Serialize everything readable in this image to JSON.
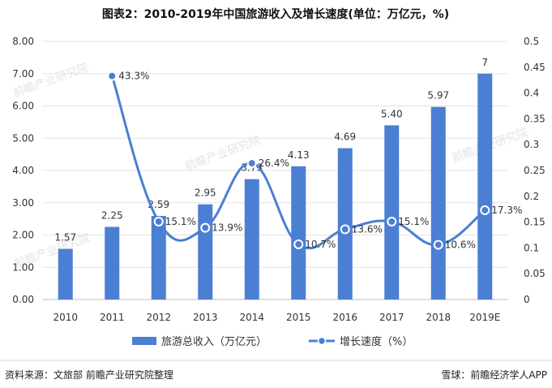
{
  "chart_data": {
    "type": "bar",
    "title": "图表2：2010-2019年中国旅游收入及增长速度(单位：万亿元，%)",
    "categories": [
      "2010",
      "2011",
      "2012",
      "2013",
      "2014",
      "2015",
      "2016",
      "2017",
      "2018",
      "2019E"
    ],
    "series": [
      {
        "name": "旅游总收入（万亿元）",
        "type": "bar",
        "axis": "left",
        "values": [
          1.57,
          2.25,
          2.59,
          2.95,
          3.73,
          4.13,
          4.69,
          5.4,
          5.97,
          7
        ],
        "labels": [
          "1.57",
          "2.25",
          "2.59",
          "2.95",
          "3.73",
          "4.13",
          "4.69",
          "5.40",
          "5.97",
          "7"
        ]
      },
      {
        "name": "增长速度（%）",
        "type": "line",
        "axis": "right",
        "values": [
          null,
          0.433,
          0.151,
          0.139,
          0.264,
          0.107,
          0.136,
          0.151,
          0.106,
          0.173
        ],
        "labels": [
          "",
          "43.3%",
          "15.1%",
          "13.9%",
          "26.4%",
          "10.7%",
          "13.6%",
          "15.1%",
          "10.6%",
          "17.3%"
        ]
      }
    ],
    "left_axis": {
      "ylim": [
        0,
        8
      ],
      "ticks": [
        "0.00",
        "1.00",
        "2.00",
        "3.00",
        "4.00",
        "5.00",
        "6.00",
        "7.00",
        "8.00"
      ]
    },
    "right_axis": {
      "ylim": [
        0,
        0.5
      ],
      "ticks": [
        "0",
        "0.05",
        "0.1",
        "0.15",
        "0.2",
        "0.25",
        "0.3",
        "0.35",
        "0.4",
        "0.45",
        "0.5"
      ]
    },
    "legend_position": "bottom",
    "colors": {
      "bar": "#4a7fd4",
      "line": "#4a7fd4",
      "marker_fill": "#4a7fd4",
      "marker_stroke": "#ffffff"
    }
  },
  "source_text": "资料来源：文旅部 前瞻产业研究院整理",
  "footer_right": "雪球：前瞻经济学人APP"
}
